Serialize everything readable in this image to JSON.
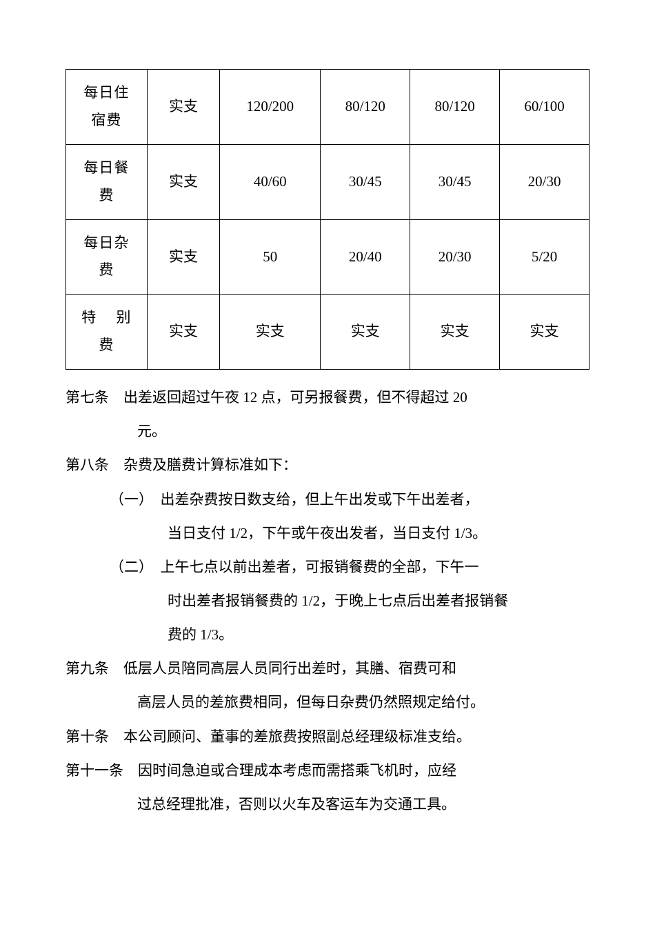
{
  "table": {
    "rows": [
      {
        "label": "每日住宿费",
        "c2": "实支",
        "c3": "120/200",
        "c4": "80/120",
        "c5": "80/120",
        "c6": "60/100"
      },
      {
        "label": "每日餐费",
        "c2": "实支",
        "c3": "40/60",
        "c4": "30/45",
        "c5": "30/45",
        "c6": "20/30"
      },
      {
        "label": "每日杂费",
        "c2": "实支",
        "c3": "50",
        "c4": "20/40",
        "c5": "20/30",
        "c6": "5/20"
      },
      {
        "label": "特 别费",
        "label_spread": "特　别",
        "label_line2": "费",
        "c2": "实支",
        "c3": "实支",
        "c4": "实支",
        "c5": "实支",
        "c6": "实支"
      }
    ]
  },
  "articles": {
    "a7": {
      "label": "第七条",
      "line1": "出差返回超过午夜 12 点，可另报餐费，但不得超过 20",
      "line2": "元。"
    },
    "a8": {
      "label": "第八条",
      "line1": "杂费及膳费计算标准如下：",
      "sub1": {
        "label": "（一）",
        "line1": "出差杂费按日数支给，但上午出发或下午出差者，",
        "line2": "当日支付 1/2，下午或午夜出发者，当日支付 1/3。"
      },
      "sub2": {
        "label": "（二）",
        "line1": "上午七点以前出差者，可报销餐费的全部，下午一",
        "line2": "时出差者报销餐费的 1/2，于晚上七点后出差者报销餐",
        "line3": "费的 1/3。"
      }
    },
    "a9": {
      "label": "第九条",
      "line1": "低层人员陪同高层人员同行出差时，其膳、宿费可和",
      "line2": "高层人员的差旅费相同，但每日杂费仍然照规定给付。"
    },
    "a10": {
      "label": "第十条",
      "line1": "本公司顾问、董事的差旅费按照副总经理级标准支给。"
    },
    "a11": {
      "label": "第十一条",
      "line1": "因时间急迫或合理成本考虑而需搭乘飞机时，应经",
      "line2": "过总经理批准，否则以火车及客运车为交通工具。"
    }
  }
}
